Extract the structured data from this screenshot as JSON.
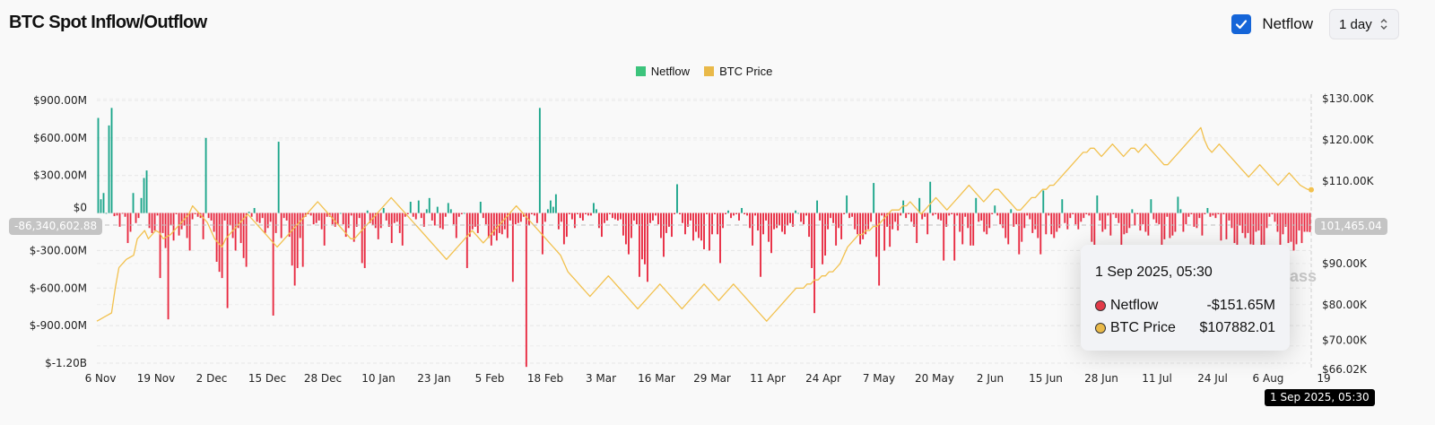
{
  "header": {
    "title": "BTC Spot Inflow/Outflow",
    "netflow_checkbox_label": "Netflow",
    "netflow_checked": true,
    "interval_select_value": "1 day"
  },
  "watermark": "ass",
  "crosshair": {
    "left_value_label": "-86,340,602.88",
    "right_value_label": "101,465.04",
    "x_label": "1 Sep 2025, 05:30"
  },
  "tooltip": {
    "date": "1 Sep 2025, 05:30",
    "rows": [
      {
        "name": "Netflow",
        "value": "-$151.65M",
        "color": "#e23a48"
      },
      {
        "name": "BTC Price",
        "value": "$107882.01",
        "color": "#e9b949"
      }
    ]
  },
  "chart_data": {
    "type": "bar",
    "title": "BTC Spot Inflow/Outflow",
    "legend": [
      {
        "name": "Netflow",
        "color": "#3cc47c"
      },
      {
        "name": "BTC Price",
        "color": "#e9b949"
      }
    ],
    "legend_position": "top-center",
    "colors": {
      "positive": "#1aa58a",
      "negative": "#e8283f",
      "price": "#f2c14e"
    },
    "x_tick_labels": [
      "6 Nov",
      "19 Nov",
      "2 Dec",
      "15 Dec",
      "28 Dec",
      "10 Jan",
      "23 Jan",
      "5 Feb",
      "18 Feb",
      "3 Mar",
      "16 Mar",
      "29 Mar",
      "11 Apr",
      "24 Apr",
      "7 May",
      "20 May",
      "2 Jun",
      "15 Jun",
      "28 Jun",
      "11 Jul",
      "24 Jul",
      "6 Aug",
      "19"
    ],
    "y_left": {
      "label": "Netflow",
      "ticks": [
        "$900.00M",
        "$600.00M",
        "$300.00M",
        "$0",
        "$-300.00M",
        "$-600.00M",
        "$-900.00M",
        "$-1.20B"
      ],
      "range": [
        -1200,
        900
      ],
      "unit": "USD millions"
    },
    "y_right": {
      "label": "BTC Price",
      "ticks": [
        "$130.00K",
        "$120.00K",
        "$110.00K",
        "$90.00K",
        "$80.00K",
        "$70.00K",
        "$66.02K"
      ],
      "range": [
        66.02,
        132
      ],
      "unit": "USD thousands"
    },
    "grid": true,
    "netflow_millions": [
      760,
      110,
      160,
      0,
      700,
      840,
      -25,
      -20,
      -110,
      -5,
      -30,
      -240,
      -150,
      160,
      -80,
      -40,
      120,
      280,
      340,
      -120,
      -160,
      -140,
      -20,
      -520,
      -160,
      -280,
      -850,
      -100,
      -220,
      -10,
      -180,
      -130,
      -100,
      -200,
      -300,
      -50,
      -10,
      -30,
      -40,
      -210,
      600,
      -40,
      -60,
      -150,
      -390,
      -470,
      -520,
      -60,
      -760,
      -100,
      -200,
      -300,
      -120,
      -240,
      -360,
      -430,
      10,
      -30,
      40,
      -70,
      -80,
      -40,
      -160,
      -120,
      -70,
      -820,
      -160,
      570,
      -200,
      -40,
      -60,
      -190,
      -420,
      -580,
      -440,
      -200,
      -430,
      -30,
      -10,
      -20,
      -90,
      -80,
      -60,
      -130,
      -260,
      -30,
      -30,
      -90,
      -110,
      -90,
      0,
      -90,
      -190,
      -120,
      -20,
      -230,
      -110,
      -40,
      -400,
      -440,
      20,
      -80,
      -100,
      -120,
      -210,
      -120,
      40,
      -60,
      -110,
      -240,
      -80,
      -70,
      -160,
      -260,
      -30,
      -10,
      90,
      -30,
      -50,
      100,
      -40,
      -110,
      30,
      120,
      -60,
      -100,
      50,
      -120,
      -130,
      -30,
      80,
      30,
      -90,
      -200,
      -30,
      -10,
      0,
      -440,
      -190,
      -130,
      -110,
      -160,
      90,
      -40,
      -90,
      -200,
      -260,
      -180,
      -220,
      -160,
      -170,
      -130,
      -200,
      -60,
      -550,
      -90,
      -80,
      -70,
      -30,
      -1230,
      -100,
      -10,
      -20,
      -80,
      840,
      -330,
      -70,
      30,
      100,
      50,
      150,
      -130,
      -70,
      -250,
      -190,
      -10,
      -50,
      -120,
      -10,
      -40,
      -60,
      -10,
      -20,
      -20,
      80,
      30,
      -120,
      -190,
      -80,
      -60,
      -10,
      -40,
      -50,
      -60,
      -50,
      -180,
      -250,
      -330,
      -200,
      -60,
      -90,
      -510,
      -370,
      -410,
      -550,
      -80,
      -60,
      -20,
      -90,
      -200,
      -350,
      -160,
      -110,
      -190,
      -10,
      230,
      -10,
      -80,
      -170,
      -110,
      -60,
      -220,
      -150,
      -200,
      -220,
      -290,
      -10,
      -300,
      -170,
      -10,
      -170,
      -400,
      -120,
      -10,
      20,
      -40,
      -20,
      -10,
      -60,
      40,
      -10,
      -20,
      -120,
      -260,
      -20,
      -140,
      -510,
      -170,
      -60,
      -230,
      -320,
      -130,
      -120,
      -100,
      -150,
      -170,
      -100,
      -80,
      -110,
      20,
      0,
      -70,
      -90,
      -20,
      -190,
      -440,
      -800,
      100,
      -60,
      -410,
      -340,
      -130,
      -40,
      -80,
      -260,
      -120,
      -210,
      -10,
      140,
      -40,
      -30,
      -130,
      -170,
      -250,
      -210,
      -170,
      -130,
      -70,
      240,
      -350,
      -580,
      -20,
      -300,
      -110,
      -270,
      -130,
      -70,
      -140,
      -20,
      100,
      -40,
      -10,
      -70,
      -110,
      -240,
      120,
      -50,
      -30,
      -170,
      250,
      -20,
      -10,
      -50,
      -60,
      -380,
      -110,
      -20,
      -10,
      -380,
      -20,
      -150,
      -250,
      -30,
      -120,
      -260,
      -260,
      120,
      -70,
      -60,
      -150,
      -170,
      -120,
      -10,
      60,
      -20,
      -90,
      -120,
      -200,
      -250,
      30,
      -110,
      -90,
      -330,
      -230,
      -120,
      -20,
      -50,
      -160,
      -130,
      -200,
      -330,
      180,
      -170,
      -20,
      -170,
      -200,
      -150,
      -120,
      110,
      -80,
      -130,
      -40,
      -10,
      -90,
      -130,
      -70,
      -40,
      -10,
      -20,
      -230,
      -290,
      140,
      -60,
      -150,
      -130,
      -20,
      -180,
      -10,
      -40,
      -80,
      -280,
      -170,
      -160,
      -120,
      30,
      -100,
      -10,
      -140,
      -90,
      -150,
      -180,
      110,
      -50,
      -80,
      -90,
      -350,
      -210,
      -30,
      -200,
      -180,
      -150,
      130,
      30,
      -150,
      -90,
      -30,
      -10,
      -110,
      -120,
      -40,
      -180,
      -10,
      40,
      -30,
      -20,
      -40,
      -10,
      -220,
      -10,
      -210,
      -60,
      -120,
      -240,
      -330,
      -100,
      -160,
      -200,
      -160,
      -250,
      -260,
      -150,
      -140,
      -300,
      -400,
      -120,
      -30,
      -10,
      -70,
      -150,
      -280,
      -170,
      -110,
      -240,
      -230,
      -300,
      -250,
      -140,
      -240,
      -150,
      -150,
      -152
    ],
    "btc_price_thousands": [
      76,
      76.5,
      77,
      77.5,
      78,
      84,
      89,
      90,
      91,
      91.5,
      92,
      96,
      97,
      98,
      96,
      97,
      98,
      97.5,
      96,
      96.5,
      97,
      98,
      99,
      100,
      101,
      102,
      104,
      103,
      102,
      101,
      100,
      98,
      96,
      95,
      94,
      96,
      97,
      98,
      99,
      100,
      101,
      102,
      101,
      100,
      99,
      98,
      97,
      96,
      95,
      94,
      95,
      96,
      97,
      98,
      99,
      100,
      101,
      102,
      103,
      104,
      105,
      104,
      103,
      102,
      101,
      100,
      99,
      98,
      97,
      96,
      96,
      97,
      98,
      99,
      100,
      101,
      102,
      103,
      104,
      105,
      106,
      105,
      104,
      103,
      102,
      101,
      100,
      99,
      98,
      97,
      96,
      95,
      94,
      93,
      92,
      91,
      92,
      93,
      94,
      95,
      96,
      97,
      98,
      97,
      96,
      95,
      96,
      97,
      98,
      99,
      100,
      101,
      102,
      103,
      104,
      103,
      102,
      101,
      100,
      99,
      98,
      97,
      96,
      95,
      94,
      93,
      92,
      90,
      88,
      87,
      86,
      85,
      84,
      83,
      82,
      83,
      84,
      85,
      86,
      87,
      86,
      85,
      84,
      83,
      82,
      81,
      80,
      79,
      80,
      81,
      82,
      83,
      84,
      85,
      84,
      83,
      82,
      81,
      80,
      79,
      80,
      81,
      82,
      83,
      84,
      85,
      84,
      83,
      82,
      81,
      82,
      83,
      84,
      85,
      84,
      83,
      82,
      81,
      80,
      79,
      78,
      77,
      76,
      77,
      78,
      79,
      80,
      81,
      82,
      83,
      84,
      84,
      84,
      85,
      85,
      86,
      86,
      87,
      87,
      88,
      88,
      89,
      90,
      92,
      94,
      95,
      96,
      97,
      97,
      98,
      98,
      99,
      99,
      100,
      101,
      102,
      103,
      103,
      103,
      104,
      104,
      105,
      104,
      103,
      102,
      103,
      104,
      105,
      106,
      105,
      104,
      103,
      104,
      105,
      106,
      107,
      108,
      109,
      108,
      107,
      106,
      105,
      106,
      107,
      108,
      108,
      107,
      106,
      105,
      104,
      103,
      103,
      104,
      105,
      106,
      106,
      107,
      108,
      108,
      109,
      109,
      110,
      111,
      112,
      113,
      114,
      115,
      116,
      117,
      117,
      118,
      118,
      117,
      116,
      117,
      118,
      119,
      118,
      117,
      116,
      117,
      118,
      118,
      117,
      118,
      119,
      118,
      117,
      116,
      115,
      114,
      114,
      115,
      116,
      117,
      118,
      119,
      120,
      121,
      122,
      123,
      120,
      118,
      117,
      118,
      119,
      118,
      117,
      116,
      115,
      114,
      113,
      112,
      111,
      112,
      113,
      114,
      113,
      112,
      111,
      110,
      109,
      110,
      111,
      112,
      111,
      110,
      109,
      108.5,
      108,
      107.9
    ]
  }
}
